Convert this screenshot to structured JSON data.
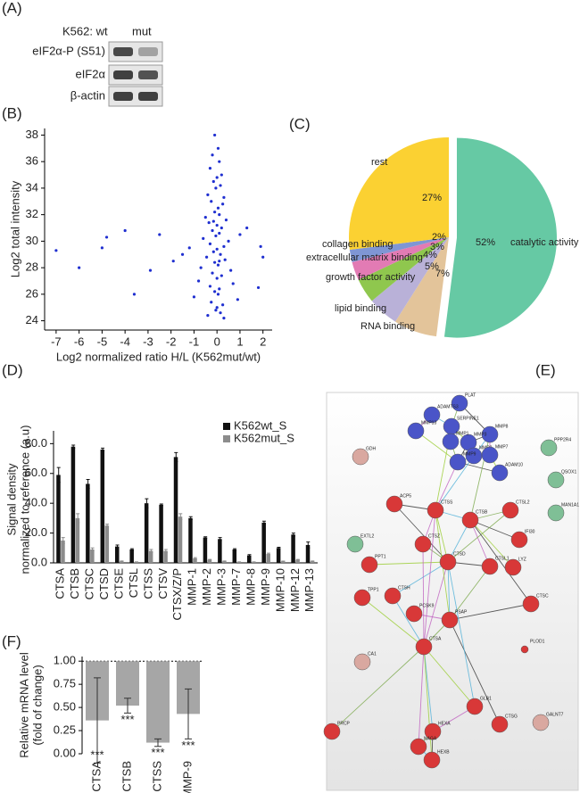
{
  "panel_labels": [
    "(A)",
    "(B)",
    "(C)",
    "(D)",
    "(E)",
    "(F)"
  ],
  "blot": {
    "header": [
      "K562: wt",
      "mut"
    ],
    "rows": [
      "eIF2α-P (S51)",
      "eIF2α",
      "β-actin"
    ]
  },
  "chart_data": [
    {
      "type": "scatter",
      "x_label": "Log2 normalized ratio H/L (K562mut/wt)",
      "y_label": "Log2 total intensity",
      "color": "#1f2fd0",
      "x": [
        -0.1,
        0.05,
        -0.2,
        0.1,
        -0.3,
        0.2,
        0,
        -0.15,
        0.15,
        -0.05,
        -0.4,
        0.3,
        -0.25,
        0.25,
        0.05,
        -0.1,
        0.1,
        -0.5,
        0.4,
        -0.35,
        0,
        0.2,
        -0.2,
        0.1,
        -0.05,
        -0.6,
        0.5,
        -0.3,
        0.3,
        0,
        -0.15,
        0.15,
        -0.45,
        0.35,
        -0.1,
        0.05,
        -0.7,
        0.6,
        -0.2,
        0.2,
        0,
        -0.8,
        0.7,
        -0.3,
        0.1,
        -0.1,
        0.05,
        -1.0,
        0.9,
        -0.25,
        0.25,
        0,
        -0.05,
        0.15,
        -0.4,
        0.3,
        -1.2,
        1.0,
        -0.15,
        0.1,
        -7,
        -6,
        -5,
        -4.8,
        -4,
        -3.6,
        -2.9,
        -2.5,
        -1.9,
        -1.5,
        1.3,
        1.8,
        1.9,
        2
      ],
      "y": [
        38,
        37,
        36.5,
        36,
        35.5,
        35,
        34.8,
        34.5,
        34.2,
        34,
        33.5,
        33.3,
        33,
        32.8,
        32.5,
        32.2,
        32,
        31.8,
        31.6,
        31.4,
        31.2,
        31,
        30.8,
        30.6,
        30.4,
        30.2,
        30,
        29.8,
        29.6,
        29.4,
        29.2,
        29,
        28.8,
        28.6,
        28.4,
        28.2,
        28,
        27.8,
        27.6,
        27.4,
        27.2,
        27,
        26.8,
        26.6,
        26.4,
        26.2,
        26,
        25.8,
        25.6,
        25.4,
        25.2,
        25,
        24.8,
        24.6,
        24.4,
        24.2,
        29.5,
        30.5,
        31.5,
        28.5,
        29.3,
        28,
        29.5,
        30.3,
        30.8,
        26,
        27.8,
        30.5,
        28.5,
        29,
        31,
        26.5,
        29.6,
        28.8
      ],
      "xlim": [
        -7.5,
        2.4
      ],
      "xticks": [
        -7,
        -6,
        -5,
        -4,
        -3,
        -2,
        -1,
        0,
        1,
        2
      ],
      "ylim": [
        23.3,
        38.5
      ],
      "yticks": [
        24,
        26,
        28,
        30,
        32,
        34,
        36,
        38
      ]
    },
    {
      "type": "pie",
      "categories": [
        "catalytic activity",
        "RNA binding",
        "lipid binding",
        "growth factor activity",
        "extracellular matrix binding",
        "collagen binding",
        "rest"
      ],
      "values": [
        52,
        7,
        5,
        4,
        3,
        2,
        27
      ],
      "value_labels": [
        "52%",
        "7%",
        "5%",
        "4%",
        "3%",
        "2%",
        "27%"
      ],
      "colors": [
        "#66c9a4",
        "#e3c49a",
        "#b9b1d8",
        "#8fc74e",
        "#e27bb4",
        "#7f96d4",
        "#fbd132"
      ]
    },
    {
      "type": "bar",
      "y_label": [
        "Signal density",
        "normalized to reference (a.u)"
      ],
      "categories": [
        "CTSA",
        "CTSB",
        "CTSC",
        "CTSD",
        "CTSE",
        "CTSL",
        "CTSS",
        "CTSV",
        "CTSX/Z/P",
        "MMP-1",
        "MMP-2",
        "MMP-3",
        "MMP-7",
        "MMP-8",
        "MMP-9",
        "MMP-10",
        "MMP-12",
        "MMP-13"
      ],
      "series": [
        {
          "name": "K562wt_S",
          "color": "#111111",
          "values": [
            59,
            78,
            53,
            76,
            11,
            9,
            40,
            39,
            71,
            30,
            17,
            16,
            9,
            5,
            27,
            10,
            19,
            12
          ],
          "errors": [
            5,
            1,
            3,
            1,
            1,
            0.5,
            3,
            0.5,
            3,
            1,
            0.5,
            1,
            0.5,
            0.5,
            1,
            0.5,
            1,
            2
          ]
        },
        {
          "name": "K562mut_S",
          "color": "#8c8c8c",
          "values": [
            15,
            30,
            9,
            25,
            1,
            0.5,
            8,
            8,
            31,
            3,
            2,
            1,
            0.5,
            0.5,
            6,
            1,
            2,
            1
          ],
          "errors": [
            2,
            3,
            1,
            1,
            0.3,
            0.2,
            1,
            1,
            2,
            0.5,
            0.3,
            0.3,
            0.2,
            0.2,
            0.5,
            0.2,
            0.3,
            0.3
          ]
        }
      ],
      "ylim": [
        0,
        85
      ],
      "yticks": [
        {
          "value": 0,
          "label": "0.0"
        },
        {
          "value": 20,
          "label": "20.0"
        },
        {
          "value": 40,
          "label": "40.0"
        },
        {
          "value": 60,
          "label": "60.0"
        },
        {
          "value": 80,
          "label": "80.0"
        }
      ],
      "legend": "top-right"
    },
    {
      "type": "bar",
      "y_label": [
        "Relative mRNA level",
        "(fold of change)"
      ],
      "categories": [
        "CTSA",
        "CTSB",
        "CTSS",
        "MMP-9"
      ],
      "values": [
        0.36,
        0.52,
        0.12,
        0.43
      ],
      "errors": [
        0.46,
        0.08,
        0.04,
        0.27
      ],
      "color": "#a6a6a6",
      "baseline": 1,
      "annotations": [
        "***",
        "***",
        "***",
        "***"
      ],
      "ylim": [
        0,
        1.05
      ],
      "yticks": [
        {
          "value": 0,
          "label": "0.00"
        },
        {
          "value": 0.25,
          "label": "0.25"
        },
        {
          "value": 0.5,
          "label": "0.50"
        },
        {
          "value": 0.75,
          "label": "0.75"
        },
        {
          "value": 1,
          "label": "1.00"
        }
      ]
    }
  ],
  "network": {
    "nodes": [
      "PLAT",
      "ADAMTS3",
      "SERPINE1",
      "MMP8",
      "MMP13",
      "MMP3",
      "MMP2",
      "MMP7",
      "MMP1",
      "MMP9",
      "ADAM10",
      "GDH",
      "PPP2R4",
      "QSOX1",
      "MAN1A1",
      "ACP5",
      "CTSS",
      "CTSL2",
      "EXTL2",
      "IFI30",
      "CTSB",
      "CTSZ",
      "CTSD",
      "PPT1",
      "CTSL1",
      "LYZ",
      "CTSH",
      "PCSK9",
      "TPP1",
      "PSAP",
      "CTSC",
      "CTSA",
      "CA1",
      "PLOD1",
      "PRCP",
      "GLB1",
      "CTSG",
      "HEXA",
      "NAGA",
      "HEXB",
      "GALNT7"
    ]
  }
}
